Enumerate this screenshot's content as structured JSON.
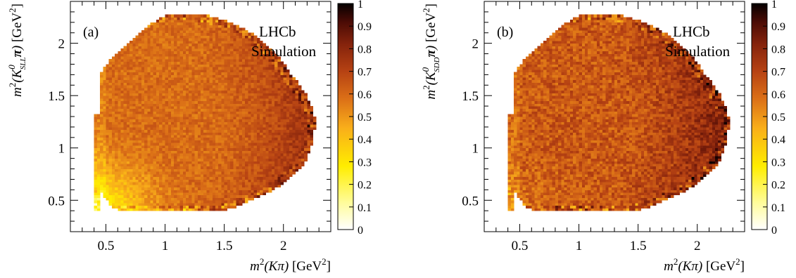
{
  "chart_data": [
    {
      "type": "heatmap",
      "panel_label": "(a)",
      "annotation": [
        "LHCb",
        "Simulation"
      ],
      "xlabel": {
        "prefix": "m",
        "sup": "2",
        "mid": "(K",
        "pi": "π",
        "close": ")",
        "unit": " [GeV",
        "unit_sup": "2",
        "unit_close": "]"
      },
      "ylabel": {
        "prefix": "m",
        "sup": "2",
        "mid": "(K",
        "k_sup": "0",
        "k_sub": "SLL",
        "pi": "π",
        "close": ")",
        "unit": " [GeV",
        "unit_sup": "2",
        "unit_close": "]"
      },
      "xlim": [
        0.2,
        2.4
      ],
      "ylim": [
        0.2,
        2.4
      ],
      "x_ticks": [
        0.5,
        1,
        1.5,
        2
      ],
      "x_tick_labels": [
        "0.5",
        "1",
        "1.5",
        "2"
      ],
      "y_ticks": [
        0.5,
        1,
        1.5,
        2
      ],
      "y_tick_labels": [
        "0.5",
        "1",
        "1.5",
        "2"
      ],
      "zlim": [
        0,
        1
      ],
      "colorbar_ticks": [
        "0",
        "0.1",
        "0.2",
        "0.3",
        "0.4",
        "0.5",
        "0.6",
        "0.7",
        "0.8",
        "0.9",
        "1"
      ],
      "bin_size": 0.025,
      "region": {
        "x_min": 0.4,
        "y_min": 0.4,
        "x_max": 2.27,
        "y_max": 2.27,
        "y_at_x_min": 1.33
      },
      "efficiency": {
        "base": 0.59,
        "high_edge": 0.76,
        "low_corner_min": 0.16,
        "low_strip_min": 0.38,
        "strip_y_max": 0.43,
        "strip_x_max": 1.24,
        "noise": 0.06
      }
    },
    {
      "type": "heatmap",
      "panel_label": "(b)",
      "annotation": [
        "LHCb",
        "Simulation"
      ],
      "xlabel": {
        "prefix": "m",
        "sup": "2",
        "mid": "(K",
        "pi": "π",
        "close": ")",
        "unit": " [GeV",
        "unit_sup": "2",
        "unit_close": "]"
      },
      "ylabel": {
        "prefix": "m",
        "sup": "2",
        "mid": "(K",
        "k_sup": "0",
        "k_sub": "SDD",
        "pi": "π",
        "close": ")",
        "unit": " [GeV",
        "unit_sup": "2",
        "unit_close": "]"
      },
      "xlim": [
        0.2,
        2.4
      ],
      "ylim": [
        0.2,
        2.4
      ],
      "x_ticks": [
        0.5,
        1,
        1.5,
        2
      ],
      "x_tick_labels": [
        "0.5",
        "1",
        "1.5",
        "2"
      ],
      "y_ticks": [
        0.5,
        1,
        1.5,
        2
      ],
      "y_tick_labels": [
        "0.5",
        "1",
        "1.5",
        "2"
      ],
      "zlim": [
        0,
        1
      ],
      "colorbar_ticks": [
        "0",
        "0.1",
        "0.2",
        "0.3",
        "0.4",
        "0.5",
        "0.6",
        "0.7",
        "0.8",
        "0.9",
        "1"
      ],
      "bin_size": 0.025,
      "region": {
        "x_min": 0.4,
        "y_min": 0.4,
        "x_max": 2.27,
        "y_max": 2.27,
        "y_at_x_min": 1.33
      },
      "efficiency": {
        "base": 0.64,
        "high_edge": 0.82,
        "low_corner_min": 0.56,
        "low_strip_min": 0.6,
        "strip_y_max": 0.43,
        "strip_x_max": 1.24,
        "noise": 0.09
      }
    }
  ]
}
